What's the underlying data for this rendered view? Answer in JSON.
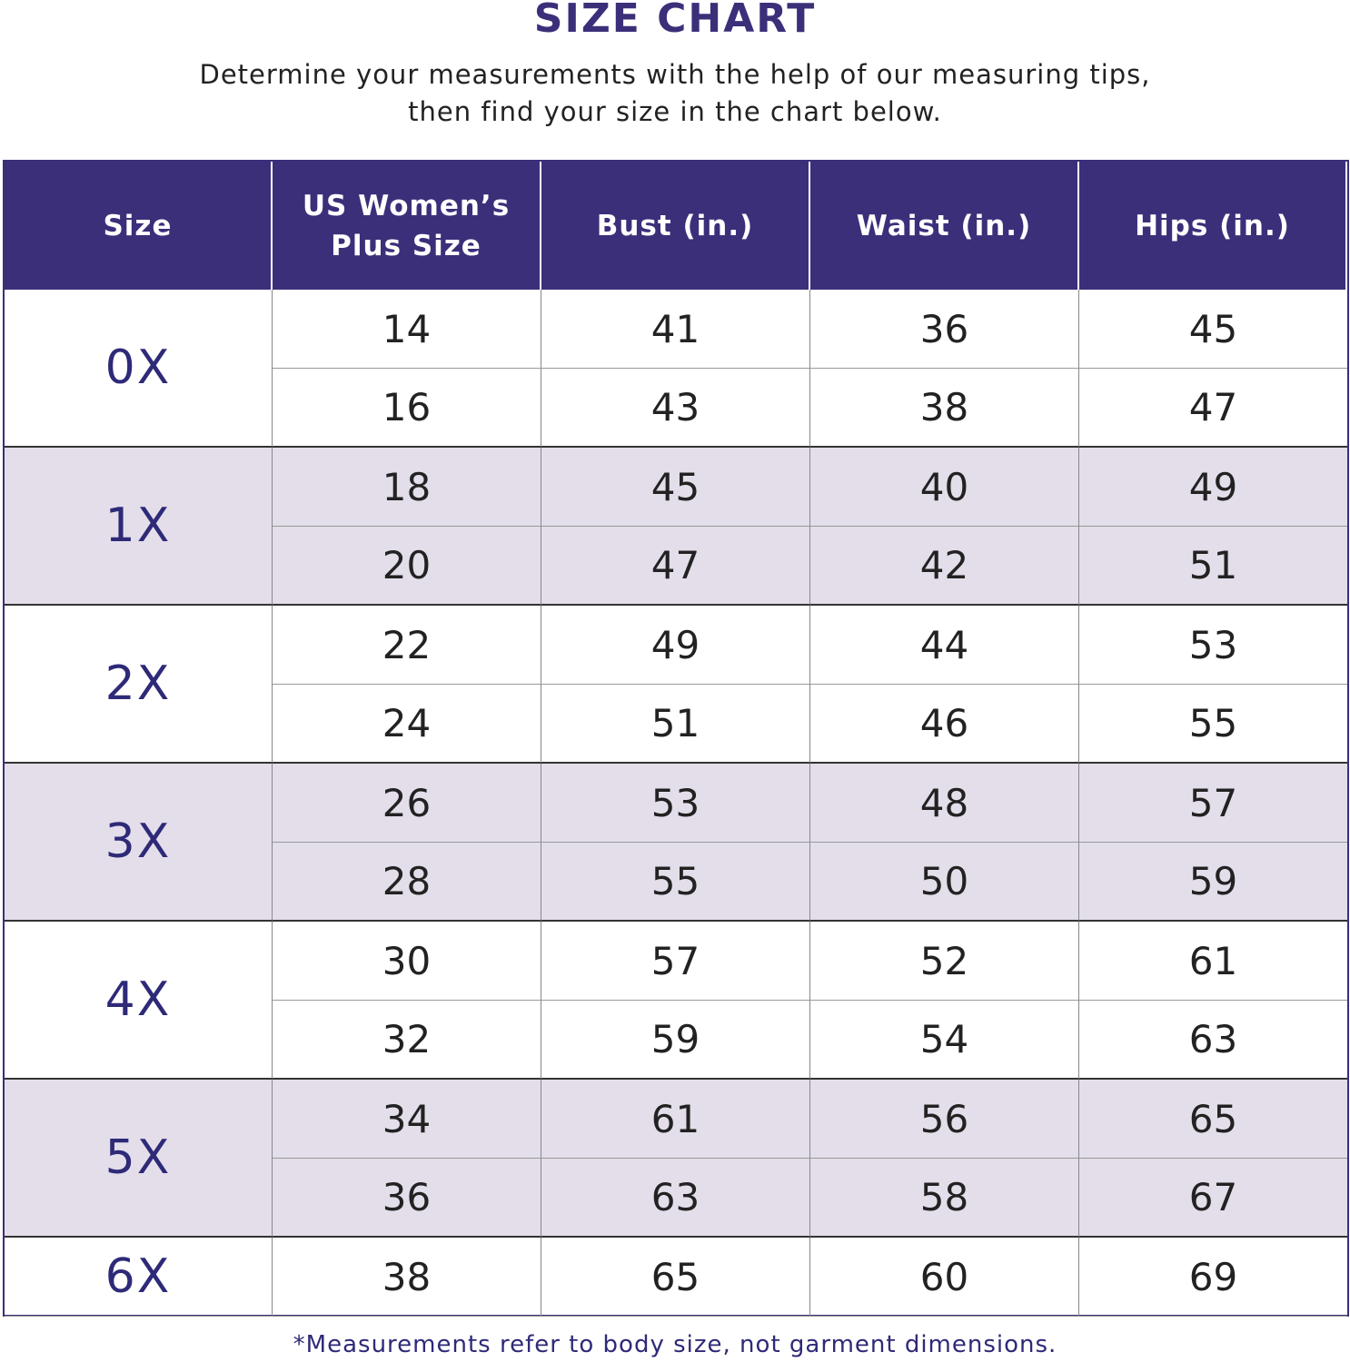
{
  "title": "SIZE CHART",
  "subtitle_line1": "Determine your measurements with the help of our measuring tips,",
  "subtitle_line2": "then find your size in the chart below.",
  "colors": {
    "header_bg": "#3b2f7a",
    "shaded_row": "#e3deea",
    "size_text": "#2e2a78"
  },
  "table": {
    "headers": [
      "Size",
      "US Women’s Plus Size",
      "Bust (in.)",
      "Waist (in.)",
      "Hips (in.)"
    ],
    "groups": [
      {
        "size": "0X",
        "rows": [
          [
            "14",
            "41",
            "36",
            "45"
          ],
          [
            "16",
            "43",
            "38",
            "47"
          ]
        ]
      },
      {
        "size": "1X",
        "rows": [
          [
            "18",
            "45",
            "40",
            "49"
          ],
          [
            "20",
            "47",
            "42",
            "51"
          ]
        ]
      },
      {
        "size": "2X",
        "rows": [
          [
            "22",
            "49",
            "44",
            "53"
          ],
          [
            "24",
            "51",
            "46",
            "55"
          ]
        ]
      },
      {
        "size": "3X",
        "rows": [
          [
            "26",
            "53",
            "48",
            "57"
          ],
          [
            "28",
            "55",
            "50",
            "59"
          ]
        ]
      },
      {
        "size": "4X",
        "rows": [
          [
            "30",
            "57",
            "52",
            "61"
          ],
          [
            "32",
            "59",
            "54",
            "63"
          ]
        ]
      },
      {
        "size": "5X",
        "rows": [
          [
            "34",
            "61",
            "56",
            "65"
          ],
          [
            "36",
            "63",
            "58",
            "67"
          ]
        ]
      },
      {
        "size": "6X",
        "rows": [
          [
            "38",
            "65",
            "60",
            "69"
          ]
        ]
      }
    ]
  },
  "footnote": "*Measurements refer to body size, not garment dimensions."
}
